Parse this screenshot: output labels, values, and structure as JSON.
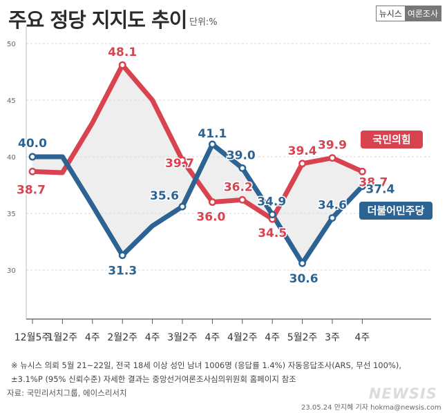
{
  "title": "주요 정당 지지도 추이",
  "unit": "단위:%",
  "badge": {
    "brand": "뉴시스",
    "label": "여론조사"
  },
  "chart_data": {
    "type": "line",
    "categories": [
      "12월5주",
      "1월2주",
      "4주",
      "2월2주",
      "4주",
      "3월2주",
      "4주",
      "4월2주",
      "4주",
      "5월2주",
      "3주",
      "4주"
    ],
    "yticks": [
      30,
      35,
      40,
      45,
      50
    ],
    "ylim": [
      27.5,
      51.5
    ],
    "series": [
      {
        "name": "국민의힘",
        "color": "#d9424f",
        "values": [
          38.7,
          38.6,
          43.0,
          48.1,
          45.0,
          39.7,
          36.0,
          36.2,
          34.5,
          39.4,
          39.9,
          38.7
        ],
        "labels": [
          "38.7",
          "",
          "",
          "48.1",
          "",
          "39.7",
          "36.0",
          "36.2",
          "34.5",
          "39.4",
          "39.9",
          "38.7"
        ]
      },
      {
        "name": "더불어민주당",
        "color": "#2c6393",
        "values": [
          40.0,
          40.0,
          35.7,
          31.3,
          33.9,
          35.6,
          41.1,
          39.0,
          34.9,
          30.6,
          34.6,
          37.4
        ],
        "labels": [
          "40.0",
          "",
          "",
          "31.3",
          "",
          "35.6",
          "41.1",
          "39.0",
          "34.9",
          "30.6",
          "34.6",
          "37.4"
        ]
      }
    ]
  },
  "notes": [
    "※ 뉴시스 의뢰 5월 21~22일, 전국 18세 이상 성인 남녀 1006명 (응답률 1.4%) 자동응답조사(ARS, 무선 100%),",
    "±3.1%P (95% 신뢰수준) 자세한 결과는 중앙선거여론조사심의위원회 홈페이지 참조"
  ],
  "source": "자료: 국민리서치그룹, 에이스리서치",
  "credit": "23.05.24 안지혜 기자 hokma@newsis.com",
  "watermark": "NEWSIS"
}
